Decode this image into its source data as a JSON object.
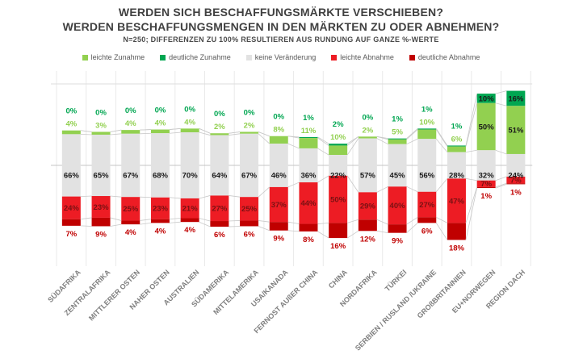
{
  "header": {
    "title_line1": "WERDEN SICH BESCHAFFUNGSMÄRKTE VERSCHIEBEN?",
    "title_line2": "WERDEN BESCHAFFUNGSMENGEN IN DEN MÄRKTEN ZU ODER ABNEHMEN?",
    "subtitle": "N=250; DIFFERENZEN ZU 100% RESULTIEREN AUS RUNDUNG AUF GANZE %-WERTE",
    "title_color": "#404040"
  },
  "legend": {
    "position": "top",
    "text_color": "#595959",
    "items": [
      {
        "label": "leichte Zunahme",
        "color": "#92D050"
      },
      {
        "label": "deutliche Zunahme",
        "color": "#00A651"
      },
      {
        "label": "keine Veränderung",
        "color": "#E2E2E2"
      },
      {
        "label": "leichte Abnahme",
        "color": "#ED1C24"
      },
      {
        "label": "deutliche Abnahme",
        "color": "#C00000"
      }
    ]
  },
  "chart_data": {
    "type": "bar",
    "variant": "diverging-stacked-100pct",
    "title": "WERDEN SICH BESCHAFFUNGSMÄRKTE VERSCHIEBEN? WERDEN BESCHAFFUNGSMENGEN IN DEN MÄRKTEN ZU ODER ABNEHMEN?",
    "subtitle": "N=250; DIFFERENZEN ZU 100% RESULTIEREN AUS RUNDUNG AUF GANZE %-WERTE",
    "unit": "%",
    "value_labels": true,
    "legend_position": "top",
    "grid": true,
    "neutral_centered_on_midline": "keine Veränderung",
    "categories": [
      "SÜDAFRIKA",
      "ZENTRALAFRIKA",
      "MITTLERER OSTEN",
      "NAHER OSTEN",
      "AUSTRALIEN",
      "SÜDAMERIKA",
      "MITTELAMERIKA",
      "USA/KANADA",
      "FERNOST AUßER CHINA",
      "CHINA",
      "NORDAFRIKA",
      "TÜRKEI",
      "SERBIEN / RUSLAND /UKRAINE",
      "GROßBRITANNIEN",
      "EU+NORWEGEN",
      "REGION DACH"
    ],
    "series": [
      {
        "key": "deutliche-zunahme",
        "name": "deutliche Zunahme",
        "color": "#00A651",
        "label_color": "#00A651",
        "values": [
          0,
          0,
          0,
          0,
          0,
          0,
          0,
          0,
          1,
          2,
          0,
          1,
          1,
          1,
          10,
          16
        ]
      },
      {
        "key": "leichte-zunahme",
        "name": "leichte Zunahme",
        "color": "#92D050",
        "label_color": "#92D050",
        "values": [
          4,
          3,
          4,
          4,
          4,
          2,
          2,
          8,
          11,
          10,
          2,
          5,
          10,
          6,
          50,
          51
        ]
      },
      {
        "key": "keine-veraenderung",
        "name": "keine Veränderung",
        "color": "#E2E2E2",
        "label_color": "#1A1A1A",
        "values": [
          66,
          65,
          67,
          68,
          70,
          64,
          67,
          46,
          36,
          22,
          57,
          45,
          56,
          28,
          32,
          24
        ]
      },
      {
        "key": "leichte-abnahme",
        "name": "leichte Abnahme",
        "color": "#ED1C24",
        "label_color": "#7A1113",
        "values": [
          24,
          23,
          25,
          23,
          21,
          27,
          25,
          37,
          44,
          50,
          29,
          40,
          27,
          47,
          7,
          7
        ]
      },
      {
        "key": "deutliche-abnahme",
        "name": "deutliche Abnahme",
        "color": "#C00000",
        "label_color": "#C00000",
        "values": [
          7,
          9,
          4,
          4,
          4,
          6,
          6,
          9,
          8,
          16,
          12,
          9,
          6,
          18,
          1,
          1
        ]
      }
    ],
    "axis": {
      "category_label_color": "#7F7F7F",
      "gridline_color": "#E9E9E9",
      "h_gridline_top_color": "#DEDEDE",
      "midline_color": "#C4C4C4",
      "connector_color": "#C9C9C9"
    }
  }
}
